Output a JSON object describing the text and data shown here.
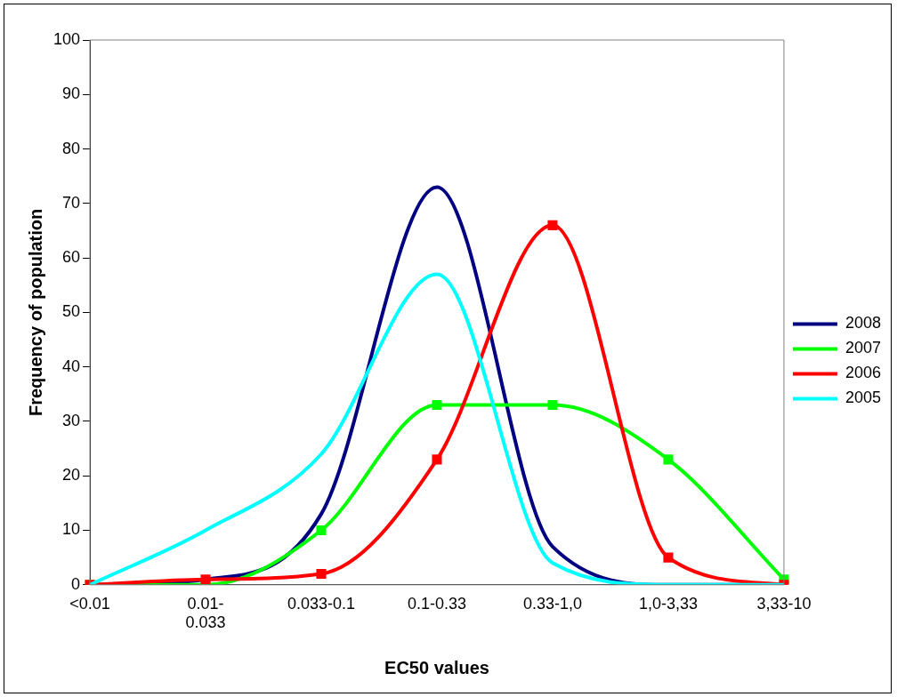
{
  "chart_data": {
    "type": "line",
    "xlabel": "EC50 values",
    "ylabel": "Frequency of population",
    "categories": [
      "<0.01",
      "0.01-0.033",
      "0.033-0.1",
      "0.1-0.33",
      "0.33-1,0",
      "1,0-3,33",
      "3,33-10"
    ],
    "series": [
      {
        "name": "2008",
        "color": "#000080",
        "marker": "none",
        "values": [
          0,
          1,
          13,
          73,
          7,
          0,
          0
        ]
      },
      {
        "name": "2007",
        "color": "#00ff00",
        "marker": "square",
        "values": [
          0,
          0,
          10,
          33,
          33,
          23,
          1
        ]
      },
      {
        "name": "2006",
        "color": "#ff0000",
        "marker": "square",
        "values": [
          0,
          1,
          2,
          23,
          66,
          5,
          0
        ]
      },
      {
        "name": "2005",
        "color": "#00ffff",
        "marker": "none",
        "values": [
          0,
          10,
          24,
          57,
          4,
          0,
          0
        ]
      }
    ],
    "ylim": [
      0,
      100
    ],
    "yticks": [
      0,
      10,
      20,
      30,
      40,
      50,
      60,
      70,
      80,
      90,
      100
    ],
    "grid": false,
    "legend": "right"
  }
}
